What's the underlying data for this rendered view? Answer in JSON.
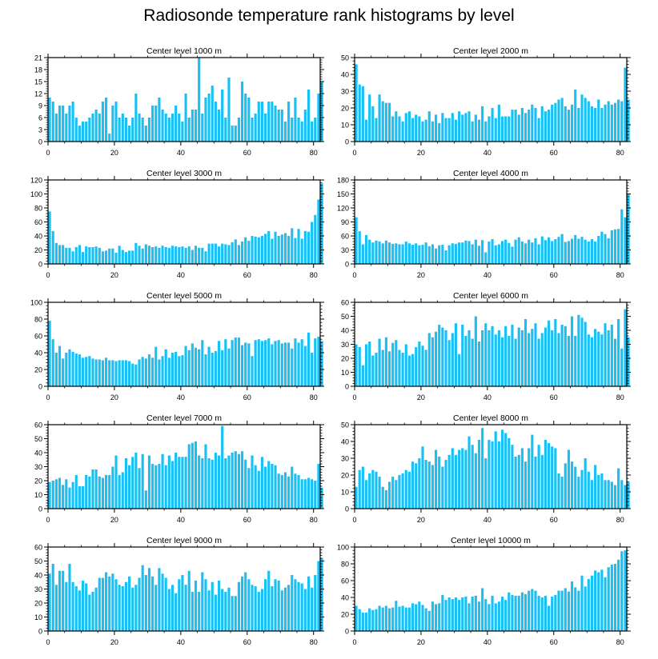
{
  "title": "Radiosonde temperature rank histograms by level",
  "colors": {
    "bar": "#18c0f4",
    "axis": "#000000",
    "background": "#ffffff"
  },
  "chart_data": [
    {
      "type": "bar",
      "title": "Center level 1000 m",
      "xlim": [
        0,
        82
      ],
      "ylim": [
        0,
        21
      ],
      "xticks": [
        0,
        20,
        40,
        60,
        80
      ],
      "yticks": [
        0,
        3,
        6,
        9,
        12,
        15,
        18,
        21
      ],
      "values": [
        11,
        10,
        7,
        9,
        9,
        7,
        9,
        10,
        6,
        4,
        5,
        5,
        6,
        7,
        8,
        7,
        10,
        11,
        2,
        9,
        10,
        6,
        7,
        6,
        4,
        6,
        12,
        7,
        6,
        4,
        6,
        9,
        9,
        11,
        8,
        7,
        6,
        7,
        9,
        7,
        5,
        12,
        6,
        8,
        8,
        21,
        7,
        11,
        12,
        14,
        10,
        8,
        13,
        6,
        16,
        4,
        4,
        6,
        15,
        12,
        11,
        6,
        7,
        10,
        10,
        7,
        10,
        10,
        9,
        8,
        8,
        5,
        10,
        6,
        11,
        6,
        5,
        8,
        13,
        5,
        6,
        12,
        15
      ],
      "xlabel": "",
      "ylabel": ""
    },
    {
      "type": "bar",
      "title": "Center level 2000 m",
      "xlim": [
        0,
        82
      ],
      "ylim": [
        0,
        50
      ],
      "xticks": [
        0,
        20,
        40,
        60,
        80
      ],
      "yticks": [
        0,
        10,
        20,
        30,
        40,
        50
      ],
      "values": [
        46,
        34,
        33,
        13,
        28,
        21,
        14,
        28,
        24,
        23,
        23,
        15,
        18,
        15,
        12,
        17,
        18,
        14,
        16,
        15,
        12,
        13,
        18,
        12,
        16,
        11,
        17,
        14,
        14,
        17,
        13,
        18,
        16,
        17,
        18,
        12,
        16,
        13,
        21,
        12,
        15,
        20,
        14,
        22,
        15,
        15,
        15,
        19,
        19,
        16,
        20,
        17,
        19,
        22,
        20,
        14,
        21,
        18,
        19,
        22,
        23,
        25,
        26,
        21,
        19,
        22,
        31,
        20,
        28,
        26,
        24,
        21,
        20,
        25,
        20,
        22,
        24,
        22,
        23,
        25,
        24,
        44,
        25
      ],
      "xlabel": "",
      "ylabel": ""
    },
    {
      "type": "bar",
      "title": "Center level 3000 m",
      "xlim": [
        0,
        82
      ],
      "ylim": [
        0,
        120
      ],
      "xticks": [
        0,
        20,
        40,
        60,
        80
      ],
      "yticks": [
        0,
        20,
        40,
        60,
        80,
        100,
        120
      ],
      "values": [
        75,
        47,
        30,
        27,
        27,
        23,
        23,
        18,
        24,
        27,
        17,
        25,
        24,
        24,
        25,
        23,
        18,
        19,
        22,
        22,
        16,
        26,
        20,
        17,
        19,
        19,
        30,
        26,
        22,
        28,
        26,
        24,
        25,
        23,
        26,
        24,
        23,
        26,
        25,
        24,
        25,
        23,
        25,
        20,
        26,
        23,
        23,
        18,
        29,
        29,
        29,
        25,
        29,
        28,
        27,
        31,
        35,
        27,
        32,
        38,
        33,
        40,
        39,
        38,
        40,
        43,
        47,
        36,
        46,
        40,
        42,
        44,
        40,
        51,
        37,
        50,
        36,
        47,
        46,
        60,
        70,
        92,
        115
      ],
      "xlabel": "",
      "ylabel": ""
    },
    {
      "type": "bar",
      "title": "Center level 4000 m",
      "xlim": [
        0,
        82
      ],
      "ylim": [
        0,
        180
      ],
      "xticks": [
        0,
        20,
        40,
        60,
        80
      ],
      "yticks": [
        0,
        30,
        60,
        90,
        120,
        150,
        180
      ],
      "values": [
        100,
        70,
        42,
        62,
        52,
        46,
        50,
        48,
        44,
        50,
        46,
        43,
        44,
        42,
        42,
        48,
        44,
        41,
        44,
        40,
        41,
        46,
        38,
        42,
        33,
        40,
        41,
        29,
        40,
        44,
        43,
        46,
        46,
        50,
        49,
        42,
        52,
        39,
        51,
        25,
        48,
        53,
        40,
        42,
        49,
        52,
        45,
        37,
        52,
        57,
        48,
        44,
        52,
        46,
        55,
        42,
        59,
        51,
        57,
        49,
        53,
        58,
        64,
        47,
        49,
        54,
        62,
        54,
        58,
        52,
        48,
        53,
        48,
        60,
        69,
        64,
        55,
        72,
        74,
        75,
        117,
        100,
        150
      ],
      "xlabel": "",
      "ylabel": ""
    },
    {
      "type": "bar",
      "title": "Center level 5000 m",
      "xlim": [
        0,
        82
      ],
      "ylim": [
        0,
        100
      ],
      "xticks": [
        0,
        20,
        40,
        60,
        80
      ],
      "yticks": [
        0,
        20,
        40,
        60,
        80,
        100
      ],
      "values": [
        78,
        56,
        40,
        48,
        33,
        40,
        44,
        41,
        39,
        38,
        34,
        35,
        36,
        33,
        32,
        32,
        31,
        34,
        31,
        31,
        30,
        31,
        31,
        31,
        30,
        27,
        26,
        32,
        35,
        33,
        38,
        34,
        47,
        32,
        36,
        44,
        34,
        40,
        41,
        36,
        37,
        48,
        43,
        51,
        46,
        44,
        55,
        38,
        47,
        40,
        42,
        54,
        43,
        56,
        45,
        55,
        58,
        58,
        49,
        52,
        51,
        36,
        55,
        56,
        54,
        55,
        57,
        50,
        54,
        55,
        51,
        52,
        52,
        45,
        57,
        52,
        56,
        48,
        64,
        40,
        57,
        59,
        54
      ],
      "xlabel": "",
      "ylabel": ""
    },
    {
      "type": "bar",
      "title": "Center level 6000 m",
      "xlim": [
        0,
        82
      ],
      "ylim": [
        0,
        60
      ],
      "xticks": [
        0,
        20,
        40,
        60,
        80
      ],
      "yticks": [
        0,
        10,
        20,
        30,
        40,
        50,
        60
      ],
      "values": [
        30,
        28,
        15,
        30,
        32,
        22,
        24,
        34,
        26,
        35,
        25,
        31,
        33,
        26,
        24,
        30,
        22,
        23,
        28,
        32,
        29,
        26,
        38,
        35,
        39,
        44,
        42,
        40,
        33,
        38,
        45,
        23,
        44,
        36,
        40,
        34,
        50,
        32,
        40,
        45,
        40,
        43,
        37,
        40,
        35,
        43,
        36,
        44,
        34,
        42,
        40,
        48,
        38,
        41,
        45,
        34,
        38,
        42,
        47,
        40,
        48,
        38,
        44,
        43,
        36,
        50,
        36,
        51,
        49,
        46,
        37,
        35,
        41,
        39,
        37,
        45,
        40,
        44,
        34,
        48,
        27,
        55,
        35
      ],
      "xlabel": "",
      "ylabel": ""
    },
    {
      "type": "bar",
      "title": "Center level 7000 m",
      "xlim": [
        0,
        82
      ],
      "ylim": [
        0,
        60
      ],
      "xticks": [
        0,
        20,
        40,
        60,
        80
      ],
      "yticks": [
        0,
        10,
        20,
        30,
        40,
        50,
        60
      ],
      "values": [
        19,
        20,
        21,
        22,
        17,
        21,
        15,
        19,
        24,
        16,
        16,
        24,
        23,
        28,
        28,
        23,
        22,
        24,
        24,
        30,
        38,
        24,
        26,
        36,
        31,
        37,
        40,
        29,
        39,
        13,
        38,
        32,
        31,
        32,
        39,
        31,
        38,
        34,
        40,
        37,
        37,
        37,
        46,
        47,
        48,
        38,
        36,
        46,
        36,
        35,
        40,
        38,
        59,
        36,
        38,
        40,
        41,
        39,
        41,
        35,
        29,
        38,
        31,
        27,
        37,
        30,
        34,
        32,
        31,
        25,
        24,
        26,
        23,
        30,
        25,
        24,
        21,
        21,
        22,
        21,
        20,
        32,
        15
      ],
      "xlabel": "",
      "ylabel": ""
    },
    {
      "type": "bar",
      "title": "Center level 8000 m",
      "xlim": [
        0,
        82
      ],
      "ylim": [
        0,
        50
      ],
      "xticks": [
        0,
        20,
        40,
        60,
        80
      ],
      "yticks": [
        0,
        10,
        20,
        30,
        40,
        50
      ],
      "values": [
        13,
        23,
        25,
        17,
        21,
        23,
        22,
        19,
        13,
        11,
        16,
        19,
        17,
        20,
        21,
        23,
        22,
        28,
        27,
        30,
        37,
        29,
        28,
        26,
        35,
        31,
        25,
        29,
        32,
        36,
        32,
        35,
        36,
        35,
        43,
        38,
        33,
        41,
        48,
        30,
        41,
        40,
        46,
        40,
        47,
        45,
        42,
        38,
        31,
        32,
        36,
        28,
        36,
        44,
        31,
        38,
        32,
        41,
        39,
        37,
        36,
        21,
        19,
        27,
        35,
        28,
        25,
        19,
        23,
        30,
        22,
        17,
        26,
        20,
        21,
        17,
        17,
        16,
        14,
        24,
        17,
        14,
        16
      ],
      "xlabel": "",
      "ylabel": ""
    },
    {
      "type": "bar",
      "title": "Center level 9000 m",
      "xlim": [
        0,
        82
      ],
      "ylim": [
        0,
        60
      ],
      "xticks": [
        0,
        20,
        40,
        60,
        80
      ],
      "yticks": [
        0,
        10,
        20,
        30,
        40,
        50,
        60
      ],
      "values": [
        41,
        48,
        33,
        43,
        43,
        35,
        48,
        35,
        32,
        29,
        36,
        34,
        26,
        28,
        31,
        38,
        38,
        42,
        39,
        41,
        37,
        33,
        32,
        35,
        39,
        31,
        33,
        38,
        47,
        40,
        45,
        39,
        33,
        45,
        41,
        38,
        30,
        33,
        27,
        37,
        40,
        33,
        43,
        28,
        36,
        28,
        42,
        37,
        29,
        35,
        26,
        36,
        30,
        28,
        31,
        25,
        25,
        35,
        39,
        42,
        37,
        33,
        32,
        28,
        30,
        37,
        43,
        32,
        37,
        36,
        29,
        31,
        33,
        40,
        37,
        35,
        34,
        30,
        39,
        31,
        40,
        50,
        52
      ],
      "xlabel": "",
      "ylabel": ""
    },
    {
      "type": "bar",
      "title": "Center level 10000 m",
      "xlim": [
        0,
        82
      ],
      "ylim": [
        0,
        100
      ],
      "xticks": [
        0,
        20,
        40,
        60,
        80
      ],
      "yticks": [
        0,
        20,
        40,
        60,
        80,
        100
      ],
      "values": [
        30,
        26,
        22,
        22,
        27,
        25,
        26,
        30,
        28,
        30,
        27,
        28,
        36,
        29,
        30,
        28,
        28,
        33,
        32,
        35,
        31,
        27,
        24,
        35,
        32,
        33,
        43,
        37,
        40,
        38,
        40,
        37,
        40,
        41,
        33,
        41,
        42,
        35,
        51,
        38,
        32,
        42,
        33,
        35,
        41,
        37,
        46,
        43,
        42,
        42,
        46,
        44,
        48,
        50,
        48,
        42,
        40,
        42,
        30,
        41,
        43,
        48,
        48,
        51,
        47,
        59,
        52,
        48,
        66,
        53,
        62,
        66,
        72,
        70,
        73,
        64,
        76,
        79,
        80,
        85,
        95,
        96
      ]
    }
  ]
}
